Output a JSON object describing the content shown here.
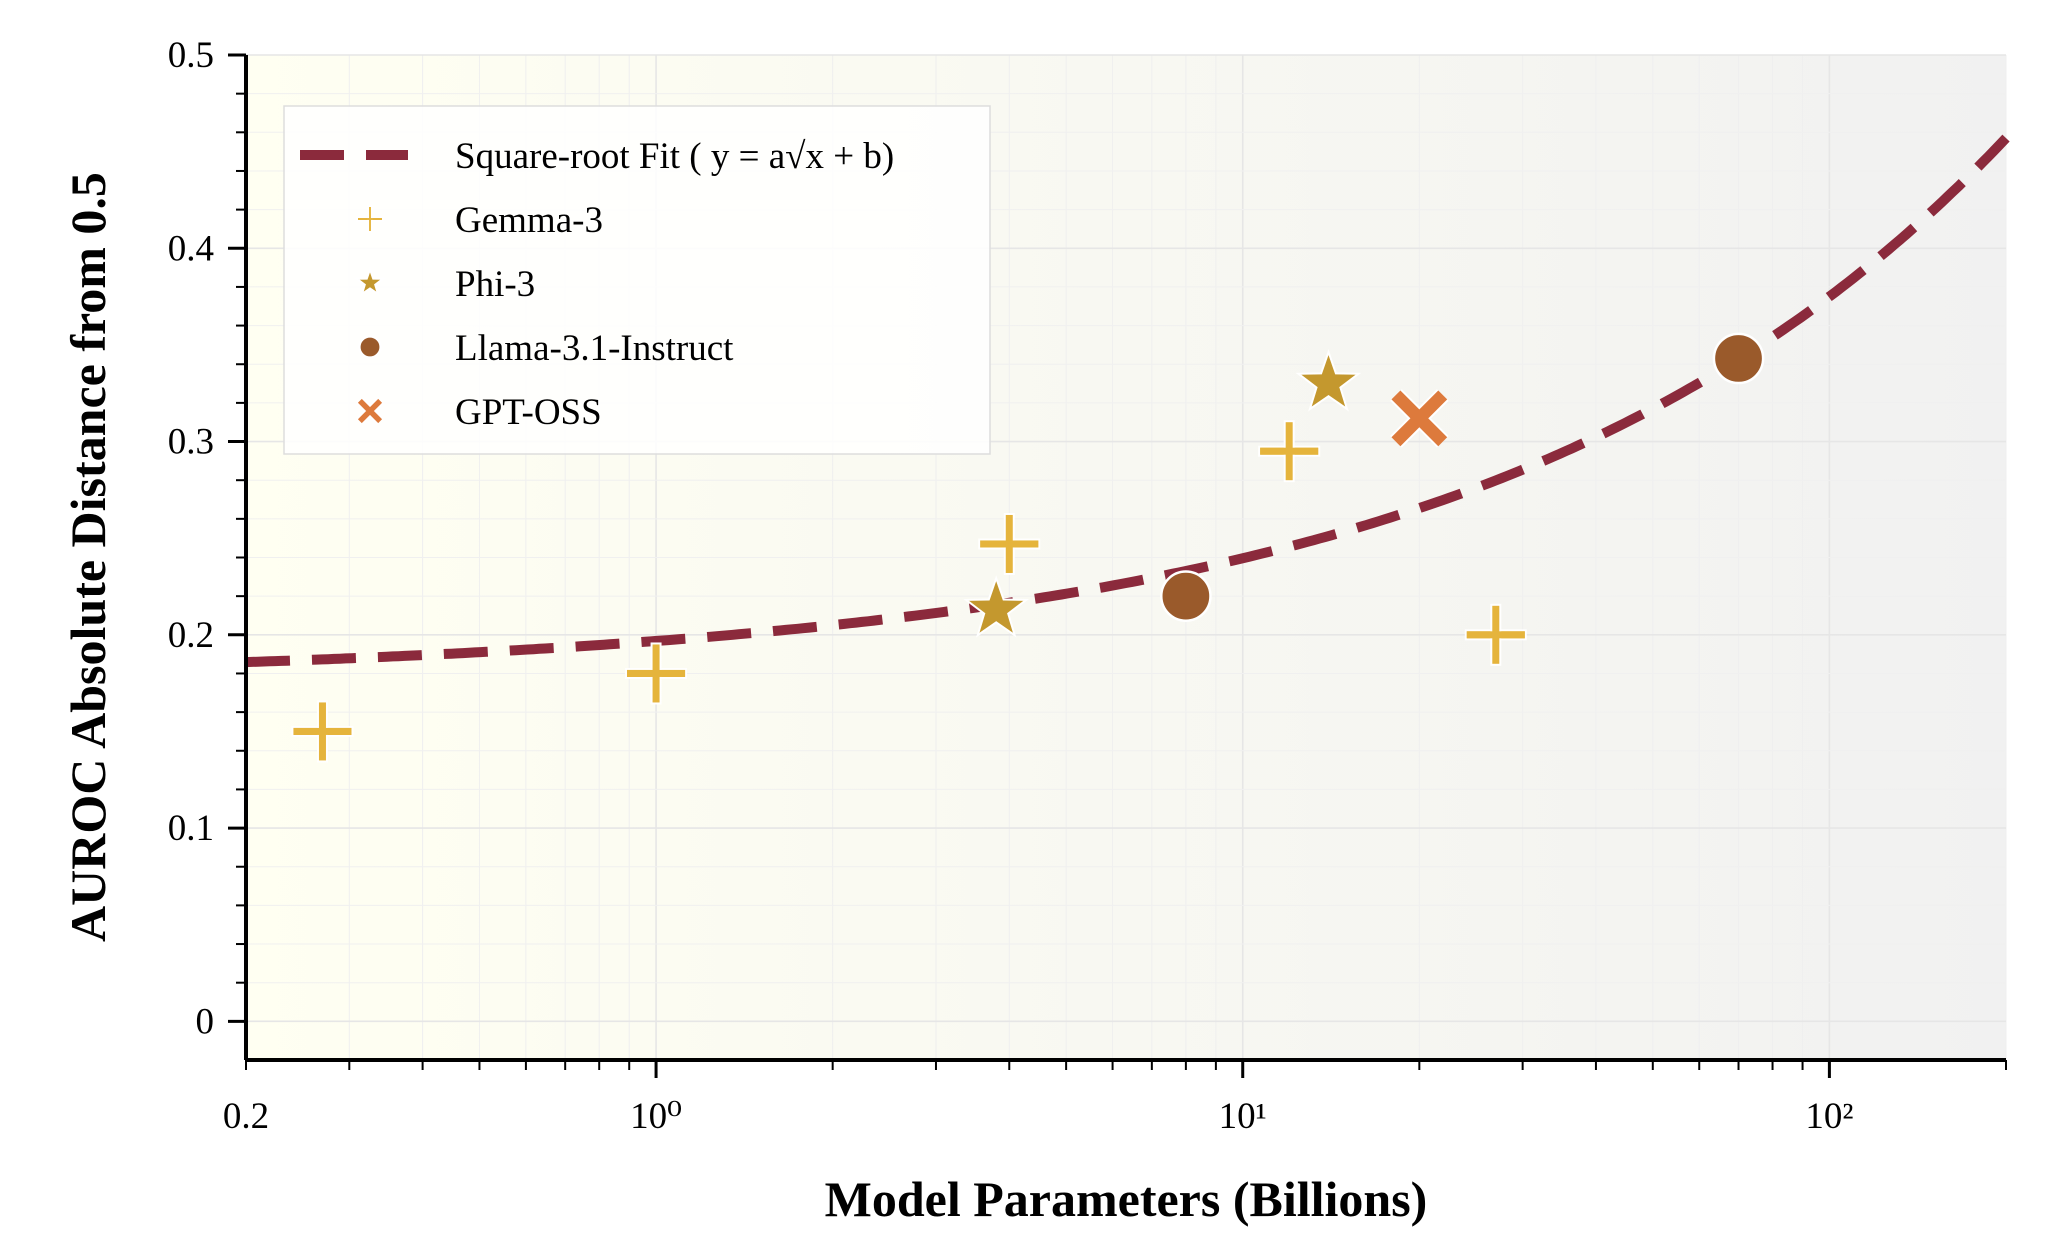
{
  "chart_data": {
    "type": "scatter",
    "xlabel": "Model Parameters (Billions)",
    "ylabel": "AUROC Absolute Distance from 0.5",
    "xscale": "log",
    "xlim": [
      0.2,
      200
    ],
    "ylim": [
      -0.02,
      0.5
    ],
    "x_tick_labels": [
      {
        "value": 0.2,
        "label": "0.2"
      },
      {
        "value": 1,
        "label": "10⁰"
      },
      {
        "value": 10,
        "label": "10¹"
      },
      {
        "value": 100,
        "label": "10²"
      }
    ],
    "y_ticks": [
      0,
      0.1,
      0.2,
      0.3,
      0.4,
      0.5
    ],
    "y_tick_labels": [
      "0",
      "0.1",
      "0.2",
      "0.3",
      "0.4",
      "0.5"
    ],
    "grid": true,
    "legend_position": "top-left",
    "fit": {
      "name": "Square-root Fit ( y = a√x + b)",
      "style": "dashed",
      "color": "#8b2a3c",
      "a": 0.0198,
      "b": 0.177
    },
    "series": [
      {
        "name": "Gemma-3",
        "marker": "plus",
        "color": "#e5b43c",
        "points": [
          {
            "x": 0.27,
            "y": 0.15
          },
          {
            "x": 1,
            "y": 0.18
          },
          {
            "x": 4,
            "y": 0.247
          },
          {
            "x": 12,
            "y": 0.295
          },
          {
            "x": 27,
            "y": 0.2
          }
        ]
      },
      {
        "name": "Phi-3",
        "marker": "star",
        "color": "#c4982e",
        "points": [
          {
            "x": 3.8,
            "y": 0.213
          },
          {
            "x": 14,
            "y": 0.33
          }
        ]
      },
      {
        "name": "Llama-3.1-Instruct",
        "marker": "circle",
        "color": "#9a5a2b",
        "points": [
          {
            "x": 8,
            "y": 0.22
          },
          {
            "x": 70,
            "y": 0.343
          }
        ]
      },
      {
        "name": "GPT-OSS",
        "marker": "x",
        "color": "#dd7a3c",
        "points": [
          {
            "x": 20,
            "y": 0.312
          }
        ]
      }
    ]
  }
}
